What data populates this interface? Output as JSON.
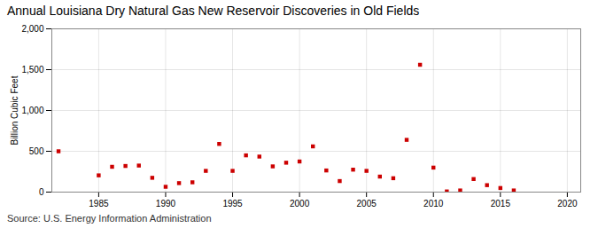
{
  "chart_data": {
    "type": "scatter",
    "title": "Annual Louisiana Dry Natural Gas New Reservoir Discoveries in Old Fields",
    "ylabel": "Billion Cubic Feet",
    "source": "Source: U.S. Energy Information Administration",
    "x": [
      1982,
      1985,
      1986,
      1987,
      1988,
      1989,
      1990,
      1991,
      1992,
      1993,
      1994,
      1995,
      1996,
      1997,
      1998,
      1999,
      2000,
      2001,
      2002,
      2003,
      2004,
      2005,
      2006,
      2007,
      2008,
      2009,
      2010,
      2011,
      2012,
      2013,
      2014,
      2015,
      2016
    ],
    "values": [
      500,
      205,
      310,
      320,
      325,
      175,
      65,
      110,
      120,
      260,
      590,
      260,
      450,
      435,
      315,
      360,
      375,
      560,
      265,
      135,
      275,
      260,
      190,
      170,
      640,
      1560,
      300,
      8,
      20,
      160,
      85,
      50,
      20
    ],
    "color": "#cc0000",
    "marker": "square",
    "xlim": [
      1981.5,
      2021
    ],
    "xticks": [
      1985,
      1990,
      1995,
      2000,
      2005,
      2010,
      2015,
      2020
    ],
    "ylim": [
      0,
      2000
    ],
    "yticks": [
      0,
      500,
      {
        "value": 1000,
        "label": "1,000"
      },
      {
        "value": 1500,
        "label": "1,500"
      },
      {
        "value": 2000,
        "label": "2,000"
      }
    ],
    "grid": true
  }
}
